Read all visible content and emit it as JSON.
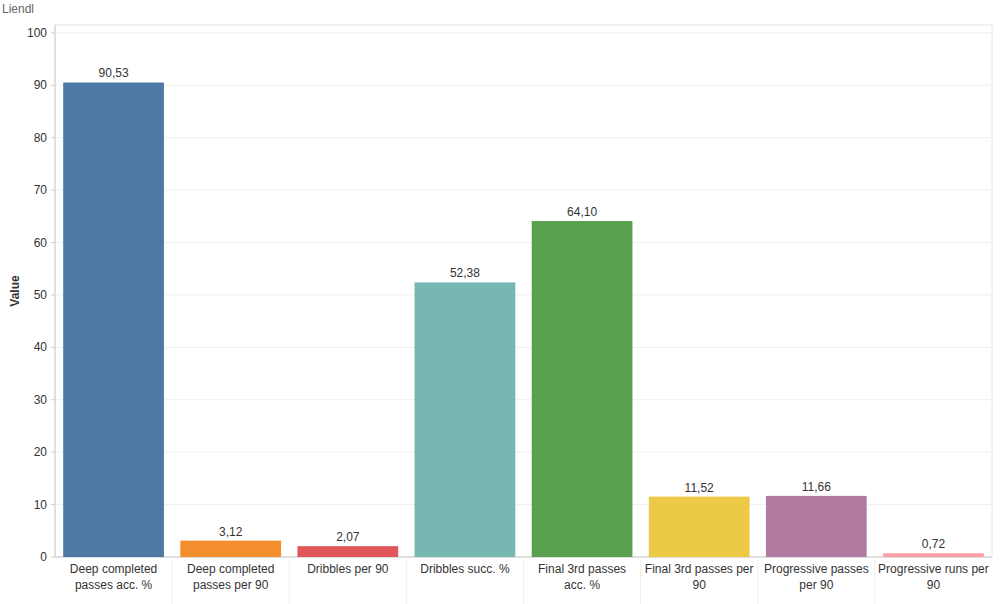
{
  "chart_data": {
    "type": "bar",
    "title": "Liendl",
    "y_label": "Value",
    "categories": [
      "Deep completed passes acc. %",
      "Deep completed passes per 90",
      "Dribbles per 90",
      "Dribbles succ. %",
      "Final 3rd passes acc. %",
      "Final 3rd passes per 90",
      "Progressive passes per 90",
      "Progressive runs per 90"
    ],
    "values": [
      90.53,
      3.12,
      2.07,
      52.38,
      64.1,
      11.52,
      11.66,
      0.72
    ],
    "value_labels": [
      "90,53",
      "3,12",
      "2,07",
      "52,38",
      "64,10",
      "11,52",
      "11,66",
      "0,72"
    ],
    "colors": [
      "#4e79a7",
      "#f28e2b",
      "#e15759",
      "#76b7b2",
      "#59a14f",
      "#edc948",
      "#b07aa1",
      "#ff9da7"
    ],
    "ylim": [
      0,
      101.5
    ],
    "yticks": [
      0,
      10,
      20,
      30,
      40,
      50,
      60,
      70,
      80,
      90,
      100
    ],
    "grid": true,
    "data_labels": true
  }
}
